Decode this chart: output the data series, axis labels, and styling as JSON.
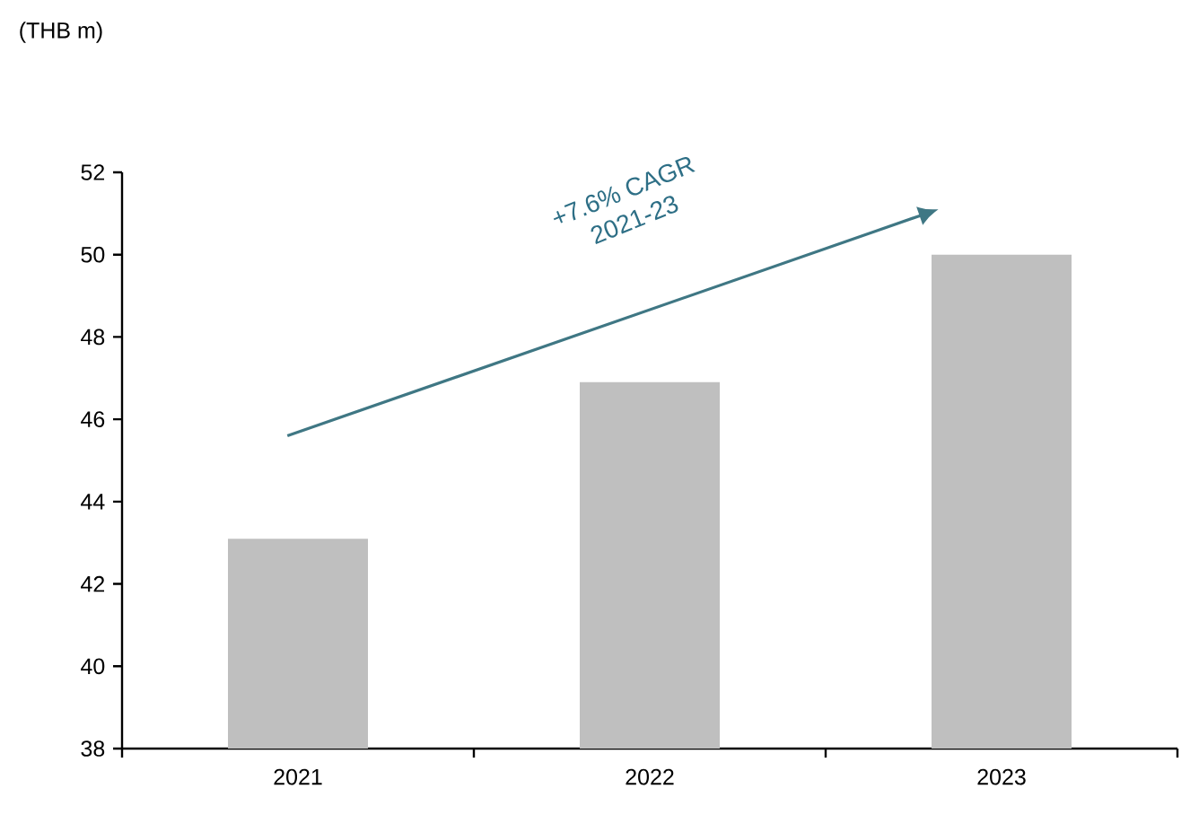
{
  "chart_data": {
    "type": "bar",
    "categories": [
      "2021",
      "2022",
      "2023"
    ],
    "values": [
      43.1,
      46.9,
      50.0
    ],
    "color": "#bfbfbf",
    "ylim": [
      38,
      52
    ],
    "yticks": [
      38,
      40,
      42,
      44,
      46,
      48,
      50,
      52
    ],
    "annotations": [
      "(THB m)",
      "+7.6% CAGR",
      "2021-23"
    ]
  }
}
